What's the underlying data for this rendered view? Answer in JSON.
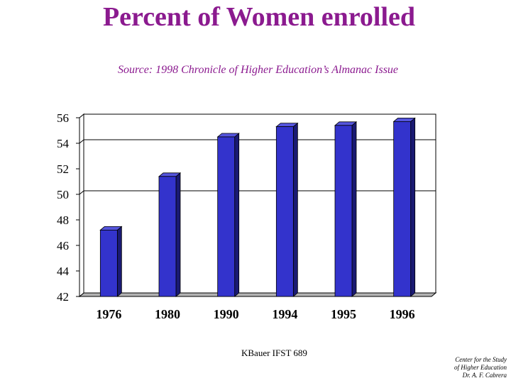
{
  "chart_data": {
    "type": "bar",
    "title": "Percent of Women enrolled",
    "subtitle": "Source: 1998 Chronicle of Higher Education’s Almanac Issue",
    "categories": [
      "1976",
      "1980",
      "1990",
      "1994",
      "1995",
      "1996"
    ],
    "values": [
      47.2,
      51.4,
      54.5,
      55.3,
      55.4,
      55.7
    ],
    "ylim": [
      42,
      56
    ],
    "yticks": [
      "42",
      "44",
      "46",
      "48",
      "50",
      "52",
      "54",
      "56"
    ],
    "xlabel": "",
    "ylabel": "",
    "grid": "horizontal",
    "legend": "none",
    "colors": {
      "bar_front": "#3333cc",
      "bar_side": "#1a1a73",
      "bar_top": "#5555dd",
      "floor": "#b3b3b3",
      "title": "#8b1a8f"
    }
  },
  "footer": {
    "text": "KBauer IFST 689",
    "credit_line1": "Center for the Study",
    "credit_line2": "of Higher Education",
    "credit_line3": "Dr. A. F. Cabrera"
  }
}
